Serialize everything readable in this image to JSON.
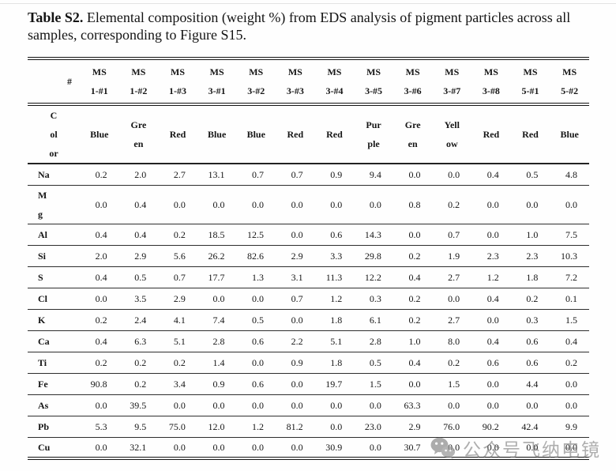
{
  "caption": {
    "label": "Table S2.",
    "text": " Elemental composition (weight %) from EDS analysis of pigment particles across all samples, corresponding to Figure S15."
  },
  "table": {
    "corner_header": "#",
    "color_row_header": "C\nol\nor",
    "samples": [
      "MS\n1-#1",
      "MS\n1-#2",
      "MS\n1-#3",
      "MS\n3-#1",
      "MS\n3-#2",
      "MS\n3-#3",
      "MS\n3-#4",
      "MS\n3-#5",
      "MS\n3-#6",
      "MS\n3-#7",
      "MS\n3-#8",
      "MS\n5-#1",
      "MS\n5-#2"
    ],
    "colors": [
      "Blue",
      "Gre\nen",
      "Red",
      "Blue",
      "Blue",
      "Red",
      "Red",
      "Pur\nple",
      "Gre\nen",
      "Yell\now",
      "Red",
      "Red",
      "Blue"
    ],
    "rows": [
      {
        "element": "Na",
        "values": [
          "0.2",
          "2.0",
          "2.7",
          "13.1",
          "0.7",
          "0.7",
          "0.9",
          "9.4",
          "0.0",
          "0.0",
          "0.4",
          "0.5",
          "4.8"
        ]
      },
      {
        "element": "M\ng",
        "values": [
          "0.0",
          "0.4",
          "0.0",
          "0.0",
          "0.0",
          "0.0",
          "0.0",
          "0.0",
          "0.8",
          "0.2",
          "0.0",
          "0.0",
          "0.0"
        ]
      },
      {
        "element": "Al",
        "values": [
          "0.4",
          "0.4",
          "0.2",
          "18.5",
          "12.5",
          "0.0",
          "0.6",
          "14.3",
          "0.0",
          "0.7",
          "0.0",
          "1.0",
          "7.5"
        ]
      },
      {
        "element": "Si",
        "values": [
          "2.0",
          "2.9",
          "5.6",
          "26.2",
          "82.6",
          "2.9",
          "3.3",
          "29.8",
          "0.2",
          "1.9",
          "2.3",
          "2.3",
          "10.3"
        ]
      },
      {
        "element": "S",
        "values": [
          "0.4",
          "0.5",
          "0.7",
          "17.7",
          "1.3",
          "3.1",
          "11.3",
          "12.2",
          "0.4",
          "2.7",
          "1.2",
          "1.8",
          "7.2"
        ]
      },
      {
        "element": "Cl",
        "values": [
          "0.0",
          "3.5",
          "2.9",
          "0.0",
          "0.0",
          "0.7",
          "1.2",
          "0.3",
          "0.2",
          "0.0",
          "0.4",
          "0.2",
          "0.1"
        ]
      },
      {
        "element": "K",
        "values": [
          "0.2",
          "2.4",
          "4.1",
          "7.4",
          "0.5",
          "0.0",
          "1.8",
          "6.1",
          "0.2",
          "2.7",
          "0.0",
          "0.3",
          "1.5"
        ]
      },
      {
        "element": "Ca",
        "values": [
          "0.4",
          "6.3",
          "5.1",
          "2.8",
          "0.6",
          "2.2",
          "5.1",
          "2.8",
          "1.0",
          "8.0",
          "0.4",
          "0.6",
          "0.4"
        ]
      },
      {
        "element": "Ti",
        "values": [
          "0.2",
          "0.2",
          "0.2",
          "1.4",
          "0.0",
          "0.9",
          "1.8",
          "0.5",
          "0.4",
          "0.2",
          "0.6",
          "0.6",
          "0.2"
        ]
      },
      {
        "element": "Fe",
        "values": [
          "90.8",
          "0.2",
          "3.4",
          "0.9",
          "0.6",
          "0.0",
          "19.7",
          "1.5",
          "0.0",
          "1.5",
          "0.0",
          "4.4",
          "0.0"
        ]
      },
      {
        "element": "As",
        "values": [
          "0.0",
          "39.5",
          "0.0",
          "0.0",
          "0.0",
          "0.0",
          "0.0",
          "0.0",
          "63.3",
          "0.0",
          "0.0",
          "0.0",
          "0.0"
        ]
      },
      {
        "element": "Pb",
        "values": [
          "5.3",
          "9.5",
          "75.0",
          "12.0",
          "1.2",
          "81.2",
          "0.0",
          "23.0",
          "2.9",
          "76.0",
          "90.2",
          "42.4",
          "9.9"
        ]
      },
      {
        "element": "Cu",
        "values": [
          "0.0",
          "32.1",
          "0.0",
          "0.0",
          "0.0",
          "0.0",
          "30.9",
          "0.0",
          "30.7",
          "0.0",
          "0.0",
          "0.0",
          "0.0"
        ]
      }
    ]
  },
  "watermark": {
    "icon": "wechat-icon",
    "text": "公众号飞纳电镜",
    "color": "#7d7d7d"
  }
}
